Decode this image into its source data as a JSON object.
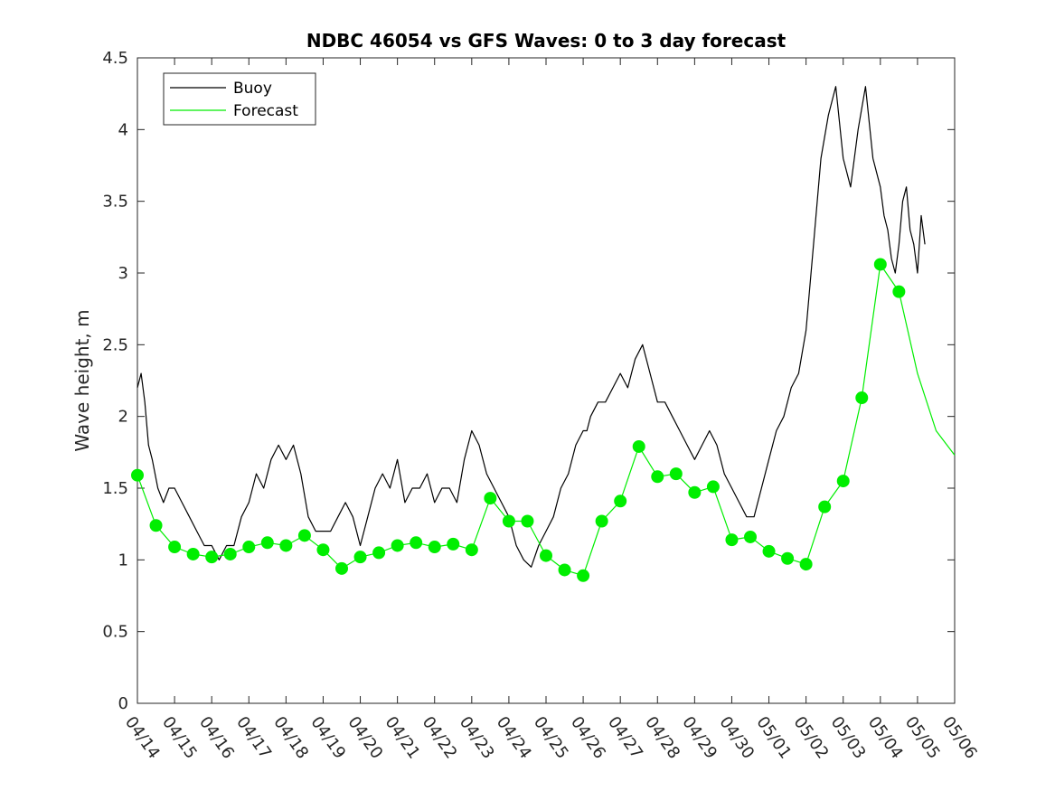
{
  "chart_data": {
    "type": "line",
    "title": "NDBC 46054 vs GFS Waves: 0 to 3 day forecast",
    "ylabel": "Wave height, m",
    "xlabel": "",
    "ylim": [
      0,
      4.5
    ],
    "yticks": [
      0,
      0.5,
      1,
      1.5,
      2,
      2.5,
      3,
      3.5,
      4,
      4.5
    ],
    "ytick_labels": [
      "0",
      "0.5",
      "1",
      "1.5",
      "2",
      "2.5",
      "3",
      "3.5",
      "4",
      "4.5"
    ],
    "xlim": [
      "04/14",
      "05/06"
    ],
    "xtick_labels": [
      "04/14",
      "04/15",
      "04/16",
      "04/17",
      "04/18",
      "04/19",
      "04/20",
      "04/21",
      "04/22",
      "04/23",
      "04/24",
      "04/25",
      "04/26",
      "04/27",
      "04/28",
      "04/29",
      "04/30",
      "05/01",
      "05/02",
      "05/03",
      "05/04",
      "05/05",
      "05/06"
    ],
    "grid": false,
    "legend": {
      "position": "top-left",
      "entries": [
        {
          "label": "Buoy",
          "color": "#000000"
        },
        {
          "label": "Forecast",
          "color": "#00ee00"
        }
      ]
    },
    "series": [
      {
        "name": "Buoy",
        "color": "#000000",
        "x": [
          0,
          0.1,
          0.2,
          0.3,
          0.4,
          0.55,
          0.7,
          0.85,
          1,
          1.2,
          1.4,
          1.6,
          1.8,
          2,
          2.2,
          2.4,
          2.6,
          2.8,
          3,
          3.2,
          3.4,
          3.6,
          3.8,
          4,
          4.2,
          4.4,
          4.6,
          4.8,
          5,
          5.2,
          5.4,
          5.6,
          5.8,
          6,
          6.2,
          6.4,
          6.6,
          6.8,
          7,
          7.2,
          7.4,
          7.6,
          7.8,
          8,
          8.2,
          8.4,
          8.6,
          8.8,
          9,
          9.2,
          9.4,
          9.6,
          9.8,
          10,
          10.1,
          10.2,
          10.4,
          10.6,
          10.8,
          11,
          11.2,
          11.4,
          11.6,
          11.8,
          12,
          12.1,
          12.2,
          12.4,
          12.6,
          12.8,
          13,
          13.2,
          13.4,
          13.6,
          13.8,
          14,
          14.2,
          14.4,
          14.6,
          14.8,
          15,
          15.2,
          15.4,
          15.6,
          15.8,
          16,
          16.2,
          16.4,
          16.6,
          16.8,
          17,
          17.2,
          17.4,
          17.6,
          17.8,
          18,
          18.2,
          18.4,
          18.6,
          18.8,
          19,
          19.2,
          19.4,
          19.6,
          19.8,
          20,
          20.1,
          20.2,
          20.3,
          20.4,
          20.5,
          20.6,
          20.7,
          20.8,
          20.9,
          21,
          21.1,
          21.2
        ],
        "values": [
          2.2,
          2.3,
          2.1,
          1.8,
          1.7,
          1.5,
          1.4,
          1.5,
          1.5,
          1.4,
          1.3,
          1.2,
          1.1,
          1.1,
          1.0,
          1.1,
          1.1,
          1.3,
          1.4,
          1.6,
          1.5,
          1.7,
          1.8,
          1.7,
          1.8,
          1.6,
          1.3,
          1.2,
          1.2,
          1.2,
          1.3,
          1.4,
          1.3,
          1.1,
          1.3,
          1.5,
          1.6,
          1.5,
          1.7,
          1.4,
          1.5,
          1.5,
          1.6,
          1.4,
          1.5,
          1.5,
          1.4,
          1.7,
          1.9,
          1.8,
          1.6,
          1.5,
          1.4,
          1.3,
          1.2,
          1.1,
          1.0,
          0.95,
          1.1,
          1.2,
          1.3,
          1.5,
          1.6,
          1.8,
          1.9,
          1.9,
          2.0,
          2.1,
          2.1,
          2.2,
          2.3,
          2.2,
          2.4,
          2.5,
          2.3,
          2.1,
          2.1,
          2.0,
          1.9,
          1.8,
          1.7,
          1.8,
          1.9,
          1.8,
          1.6,
          1.5,
          1.4,
          1.3,
          1.3,
          1.5,
          1.7,
          1.9,
          2.0,
          2.2,
          2.3,
          2.6,
          3.2,
          3.8,
          4.1,
          4.3,
          3.8,
          3.6,
          4.0,
          4.3,
          3.8,
          3.6,
          3.4,
          3.3,
          3.1,
          3.0,
          3.2,
          3.5,
          3.6,
          3.3,
          3.2,
          3.0,
          3.4,
          3.2
        ]
      },
      {
        "name": "Forecast",
        "color": "#00ee00",
        "x": [
          0,
          0.5,
          1,
          1.5,
          2,
          2.5,
          3,
          3.5,
          4,
          4.5,
          5,
          5.5,
          6,
          6.5,
          7,
          7.5,
          8,
          8.5,
          9,
          9.5,
          10,
          10.5,
          11,
          11.5,
          12,
          12.5,
          13,
          13.5,
          14,
          14.5,
          15,
          15.5,
          16,
          16.5,
          17,
          17.5,
          18,
          18.5,
          19,
          19.5,
          20,
          20.5,
          21,
          21.5,
          22
        ],
        "values": [
          1.59,
          1.24,
          1.09,
          1.04,
          1.02,
          1.04,
          1.09,
          1.12,
          1.1,
          1.17,
          1.07,
          0.94,
          1.02,
          1.05,
          1.1,
          1.12,
          1.09,
          1.11,
          1.07,
          1.43,
          1.27,
          1.27,
          1.03,
          0.93,
          0.89,
          1.27,
          1.41,
          1.79,
          1.58,
          1.6,
          1.47,
          1.51,
          1.14,
          1.16,
          1.06,
          1.01,
          0.97,
          1.37,
          1.55,
          2.13,
          3.06,
          2.87,
          2.3,
          1.9,
          1.73
        ]
      }
    ],
    "forecast_points": {
      "x": [
        0,
        0.5,
        1,
        1.5,
        2,
        2.5,
        3,
        3.5,
        4,
        4.5,
        5,
        5.5,
        6,
        6.5,
        7,
        7.5,
        8,
        8.5,
        9,
        9.5,
        10,
        10.5,
        11,
        11.5,
        12,
        12.5,
        13,
        13.5,
        14,
        14.5,
        15,
        15.5,
        16,
        16.5,
        17,
        17.5,
        18,
        18.5,
        19,
        19.5,
        20,
        20.5
      ],
      "values": [
        1.59,
        1.24,
        1.09,
        1.04,
        1.02,
        1.04,
        1.09,
        1.12,
        1.1,
        1.17,
        1.07,
        0.94,
        1.02,
        1.05,
        1.1,
        1.12,
        1.09,
        1.11,
        1.07,
        1.43,
        1.27,
        1.27,
        1.03,
        0.93,
        0.89,
        1.27,
        1.41,
        1.79,
        1.58,
        1.6,
        1.47,
        1.51,
        1.14,
        1.16,
        1.06,
        1.01,
        0.97,
        1.37,
        1.55,
        2.13,
        3.06,
        2.87
      ]
    }
  }
}
